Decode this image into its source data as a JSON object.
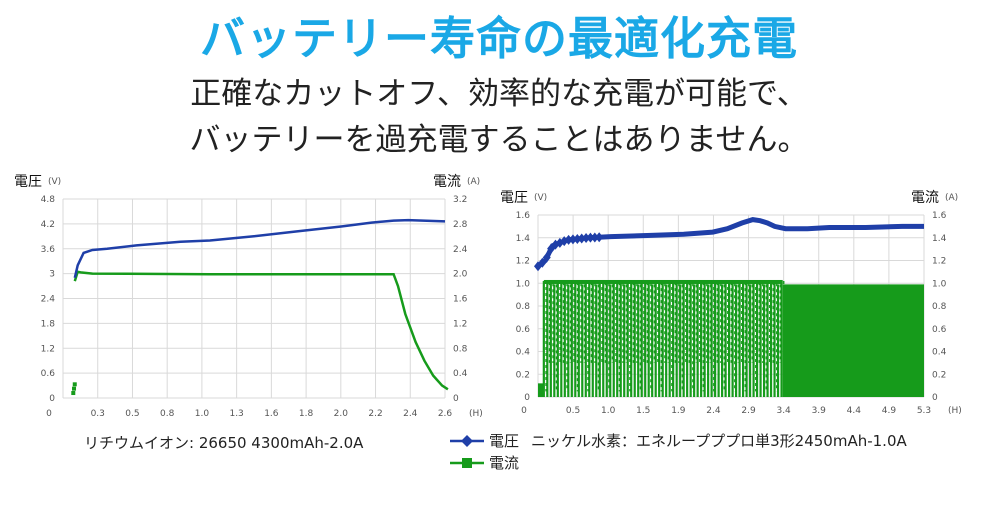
{
  "header": {
    "title": "バッテリー寿命の最適化充電",
    "line1": "正確なカットオフ、効率的な充電が可能で、",
    "line2": "バッテリーを過充電することはありません。"
  },
  "colors": {
    "title": "#1aa8e6",
    "voltage": "#1f3fa8",
    "current": "#169b1b",
    "grid": "#d9d9d9"
  },
  "chart_data": [
    {
      "type": "line",
      "caption": "リチウムイオン: 26650 4300mAh-2.0A",
      "left_axis_label": "電圧",
      "left_axis_unit": "V",
      "right_axis_label": "電流",
      "right_axis_unit": "A",
      "x_unit": "H",
      "x_ticks": [
        "0",
        "0.3",
        "0.5",
        "0.8",
        "1.0",
        "1.3",
        "1.6",
        "1.8",
        "2.0",
        "2.2",
        "2.4",
        "2.6"
      ],
      "xlim": [
        0,
        2.6
      ],
      "y_left_ticks": [
        "0",
        "0.6",
        "1.2",
        "1.8",
        "2.4",
        "3",
        "3.6",
        "4.2",
        "4.8"
      ],
      "ylim_left": [
        0,
        4.8
      ],
      "y_right_ticks": [
        "0",
        "0.4",
        "0.8",
        "1.2",
        "1.6",
        "2.0",
        "2.4",
        "2.8",
        "3.2"
      ],
      "ylim_right": [
        0,
        3.2
      ],
      "series": [
        {
          "name": "電圧",
          "axis": "left",
          "x": [
            0.08,
            0.1,
            0.14,
            0.2,
            0.3,
            0.5,
            0.8,
            1.0,
            1.3,
            1.6,
            1.9,
            2.1,
            2.25,
            2.35,
            2.45,
            2.6
          ],
          "y": [
            2.9,
            3.2,
            3.5,
            3.57,
            3.6,
            3.68,
            3.77,
            3.8,
            3.9,
            4.02,
            4.14,
            4.23,
            4.28,
            4.29,
            4.28,
            4.26
          ]
        },
        {
          "name": "電流",
          "axis": "right",
          "x": [
            0.08,
            0.1,
            0.12,
            0.2,
            1.0,
            2.0,
            2.25,
            2.28,
            2.33,
            2.4,
            2.46,
            2.52,
            2.58,
            2.62
          ],
          "y": [
            1.88,
            2.03,
            2.02,
            2.0,
            1.99,
            1.99,
            1.99,
            1.8,
            1.35,
            0.9,
            0.6,
            0.36,
            0.2,
            0.14
          ]
        }
      ]
    },
    {
      "type": "line",
      "left_axis_label": "電圧",
      "left_axis_unit": "V",
      "right_axis_label": "電流",
      "right_axis_unit": "A",
      "x_unit": "H",
      "x_ticks": [
        "0",
        "0.5",
        "1.0",
        "1.5",
        "1.9",
        "2.4",
        "2.9",
        "3.4",
        "3.9",
        "4.4",
        "4.9",
        "5.3"
      ],
      "xlim": [
        0,
        5.3
      ],
      "y_left_ticks": [
        "0",
        "0.2",
        "0.4",
        "0.6",
        "0.8",
        "1.0",
        "1.2",
        "1.4",
        "1.6"
      ],
      "ylim_left": [
        0,
        1.6
      ],
      "y_right_ticks": [
        "0",
        "0.2",
        "0.4",
        "0.6",
        "0.8",
        "1.0",
        "1.2",
        "1.4",
        "1.6"
      ],
      "ylim_right": [
        0,
        1.6
      ],
      "series": [
        {
          "name": "電圧",
          "axis": "left",
          "x": [
            0.0,
            0.1,
            0.2,
            0.4,
            0.7,
            1.0,
            1.5,
            2.0,
            2.4,
            2.6,
            2.8,
            2.95,
            3.05,
            3.15,
            3.25,
            3.4,
            3.7,
            4.0,
            4.5,
            5.0,
            5.3
          ],
          "y": [
            1.15,
            1.2,
            1.33,
            1.38,
            1.4,
            1.41,
            1.42,
            1.43,
            1.45,
            1.48,
            1.53,
            1.56,
            1.55,
            1.53,
            1.5,
            1.48,
            1.48,
            1.49,
            1.49,
            1.5,
            1.5
          ]
        },
        {
          "name": "電流",
          "axis": "right",
          "pulse_x_range": [
            0.08,
            3.36
          ],
          "pulse_high": 1.02,
          "pulse_low": [
            0.3,
            0.05
          ],
          "pulse_period": 0.048,
          "block_x_range": [
            3.36,
            5.3
          ],
          "block_top": 0.99,
          "initial_x_range": [
            0.0,
            0.08
          ],
          "initial_value": 0.12
        }
      ]
    }
  ],
  "legend": [
    {
      "label": "電圧",
      "color": "#1f3fa8",
      "marker": "diamond"
    },
    {
      "label": "電流",
      "color": "#169b1b",
      "marker": "square"
    }
  ],
  "caption2": "ニッケル水素：エネループププロ単3形2450mAh-1.0A"
}
